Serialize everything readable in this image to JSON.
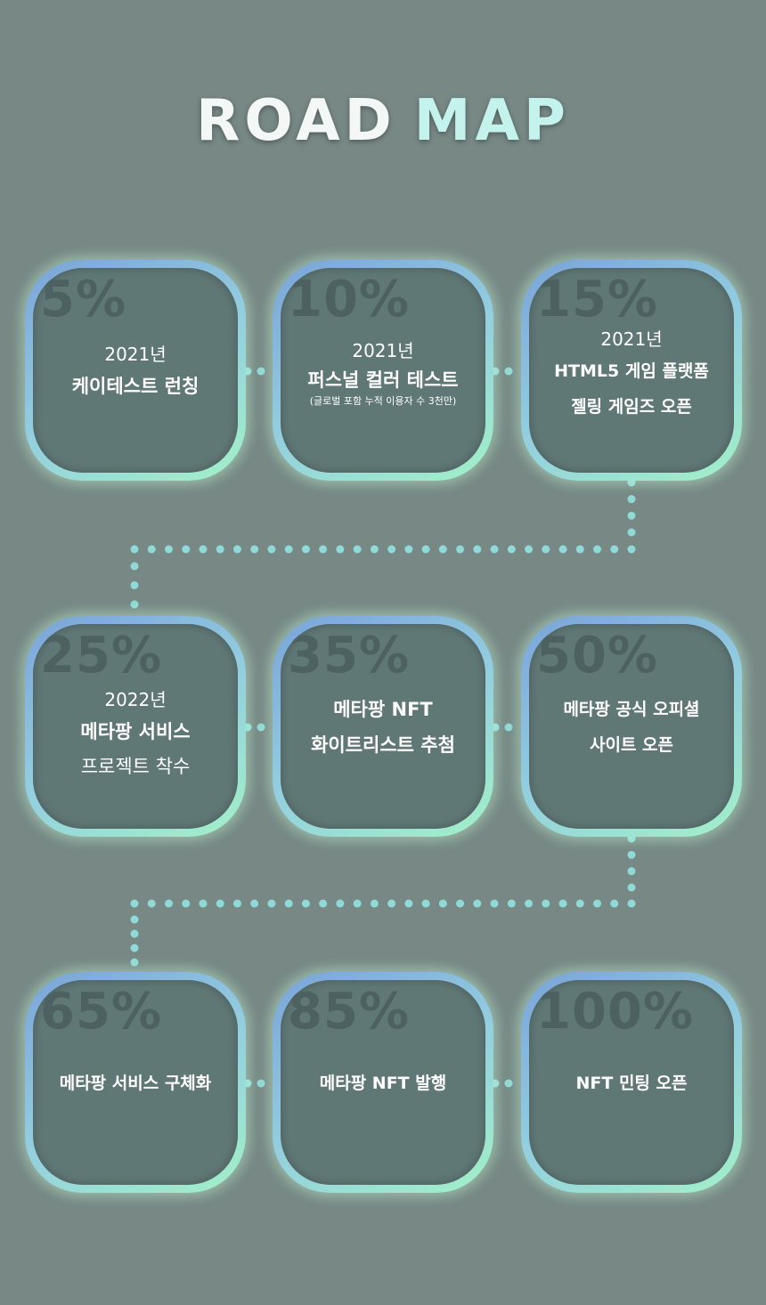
{
  "title": {
    "word1": "ROAD",
    "word2": "MAP"
  },
  "colors": {
    "background": "#778885",
    "card_fill": "#5f7775",
    "dots": "#8fdad6",
    "percent_text": "#4d6260"
  },
  "milestones": [
    {
      "percent": "5%",
      "year": "2021년",
      "line1": "케이테스트 런칭"
    },
    {
      "percent": "10%",
      "year": "2021년",
      "line1": "퍼스널 컬러 테스트",
      "note": "(글로벌 포함 누적 이용자 수 3천만)"
    },
    {
      "percent": "15%",
      "year": "2021년",
      "line1": "HTML5 게임 플랫폼",
      "line2": "젤링 게임즈 오픈"
    },
    {
      "percent": "25%",
      "year": "2022년",
      "line1": "메타팡 서비스",
      "line2": "프로젝트 착수"
    },
    {
      "percent": "35%",
      "line1": "메타팡 NFT",
      "line2": "화이트리스트 추첨"
    },
    {
      "percent": "50%",
      "line1": "메타팡 공식 오피셜",
      "line2": "사이트 오픈"
    },
    {
      "percent": "65%",
      "line1": "메타팡 서비스 구체화"
    },
    {
      "percent": "85%",
      "line1": "메타팡 NFT 발행"
    },
    {
      "percent": "100%",
      "line1": "NFT 민팅 오픈"
    }
  ]
}
